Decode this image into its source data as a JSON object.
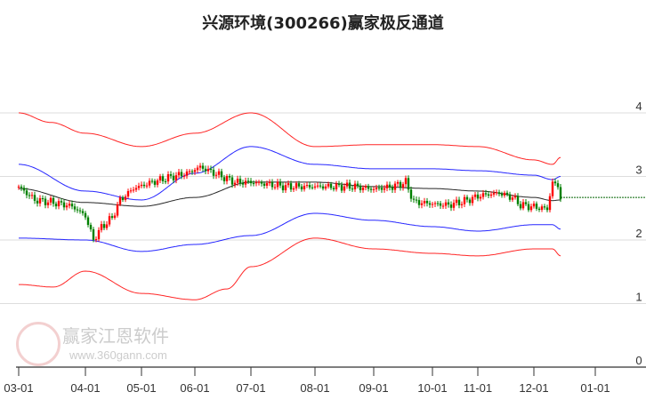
{
  "chart_data": {
    "type": "candlestick",
    "title": "兴源环境(300266)赢家极反通道",
    "xlabel": "",
    "ylabel": "",
    "ylim": [
      0,
      4.2
    ],
    "y_ticks": [
      "0",
      "1",
      "2",
      "3",
      "4"
    ],
    "x_unit": "trading days since 03-01",
    "x_range": [
      0,
      235
    ],
    "x_ticks": [
      {
        "label": "03-01",
        "x": 0
      },
      {
        "label": "04-01",
        "x": 25
      },
      {
        "label": "05-01",
        "x": 46
      },
      {
        "label": "06-01",
        "x": 66
      },
      {
        "label": "07-01",
        "x": 87
      },
      {
        "label": "08-01",
        "x": 111
      },
      {
        "label": "09-01",
        "x": 133
      },
      {
        "label": "10-01",
        "x": 155
      },
      {
        "label": "11-01",
        "x": 172
      },
      {
        "label": "12-01",
        "x": 193
      },
      {
        "label": "01-01",
        "x": 216
      }
    ],
    "grid": true,
    "close_keypoints": [
      [
        0,
        2.84
      ],
      [
        6,
        2.63
      ],
      [
        13,
        2.59
      ],
      [
        20,
        2.53
      ],
      [
        25,
        2.38
      ],
      [
        28,
        2.0
      ],
      [
        31,
        2.2
      ],
      [
        35,
        2.35
      ],
      [
        38,
        2.63
      ],
      [
        43,
        2.81
      ],
      [
        50,
        2.91
      ],
      [
        56,
        2.98
      ],
      [
        63,
        3.05
      ],
      [
        68,
        3.15
      ],
      [
        75,
        3.02
      ],
      [
        81,
        2.91
      ],
      [
        87,
        2.91
      ],
      [
        93,
        2.88
      ],
      [
        100,
        2.84
      ],
      [
        111,
        2.84
      ],
      [
        120,
        2.84
      ],
      [
        126,
        2.84
      ],
      [
        133,
        2.8
      ],
      [
        140,
        2.84
      ],
      [
        145,
        2.91
      ],
      [
        148,
        2.6
      ],
      [
        155,
        2.57
      ],
      [
        161,
        2.55
      ],
      [
        166,
        2.6
      ],
      [
        173,
        2.7
      ],
      [
        180,
        2.74
      ],
      [
        185,
        2.67
      ],
      [
        188,
        2.55
      ],
      [
        193,
        2.52
      ],
      [
        198,
        2.49
      ],
      [
        200,
        2.91
      ],
      [
        202,
        2.84
      ],
      [
        203,
        2.67
      ]
    ],
    "last_close": 2.67,
    "series": [
      {
        "name": "upper-outer",
        "color": "#ff0000",
        "points": [
          [
            0,
            4.0
          ],
          [
            12,
            3.85
          ],
          [
            25,
            3.68
          ],
          [
            46,
            3.47
          ],
          [
            66,
            3.68
          ],
          [
            87,
            4.0
          ],
          [
            111,
            3.47
          ],
          [
            133,
            3.5
          ],
          [
            155,
            3.5
          ],
          [
            172,
            3.47
          ],
          [
            193,
            3.26
          ],
          [
            200,
            3.19
          ],
          [
            203,
            3.3
          ]
        ]
      },
      {
        "name": "upper-inner",
        "color": "#0000ff",
        "points": [
          [
            0,
            3.19
          ],
          [
            25,
            2.77
          ],
          [
            46,
            2.63
          ],
          [
            66,
            3.05
          ],
          [
            87,
            3.47
          ],
          [
            111,
            3.19
          ],
          [
            133,
            3.12
          ],
          [
            155,
            3.12
          ],
          [
            172,
            3.09
          ],
          [
            193,
            3.02
          ],
          [
            200,
            2.95
          ],
          [
            203,
            3.0
          ]
        ]
      },
      {
        "name": "middle",
        "color": "#000000",
        "points": [
          [
            0,
            2.81
          ],
          [
            25,
            2.59
          ],
          [
            46,
            2.53
          ],
          [
            66,
            2.67
          ],
          [
            87,
            2.91
          ],
          [
            111,
            2.91
          ],
          [
            133,
            2.84
          ],
          [
            155,
            2.81
          ],
          [
            172,
            2.77
          ],
          [
            193,
            2.67
          ],
          [
            200,
            2.62
          ],
          [
            203,
            2.63
          ]
        ]
      },
      {
        "name": "lower-inner",
        "color": "#0000ff",
        "points": [
          [
            0,
            2.03
          ],
          [
            25,
            2.0
          ],
          [
            46,
            1.82
          ],
          [
            66,
            1.93
          ],
          [
            87,
            2.07
          ],
          [
            111,
            2.42
          ],
          [
            133,
            2.31
          ],
          [
            155,
            2.21
          ],
          [
            172,
            2.14
          ],
          [
            193,
            2.24
          ],
          [
            200,
            2.24
          ],
          [
            203,
            2.17
          ]
        ]
      },
      {
        "name": "lower-outer",
        "color": "#ff0000",
        "points": [
          [
            0,
            1.3
          ],
          [
            13,
            1.26
          ],
          [
            25,
            1.51
          ],
          [
            46,
            1.16
          ],
          [
            66,
            1.06
          ],
          [
            78,
            1.23
          ],
          [
            87,
            1.58
          ],
          [
            111,
            2.03
          ],
          [
            133,
            1.86
          ],
          [
            155,
            1.79
          ],
          [
            172,
            1.75
          ],
          [
            193,
            1.86
          ],
          [
            200,
            1.86
          ],
          [
            203,
            1.75
          ]
        ]
      }
    ],
    "up_color": "#ff0000",
    "down_color": "#008000"
  },
  "watermark": {
    "brand": "赢家江恩软件",
    "url": "www.360gann.com",
    "seal": "江赢恩家"
  }
}
